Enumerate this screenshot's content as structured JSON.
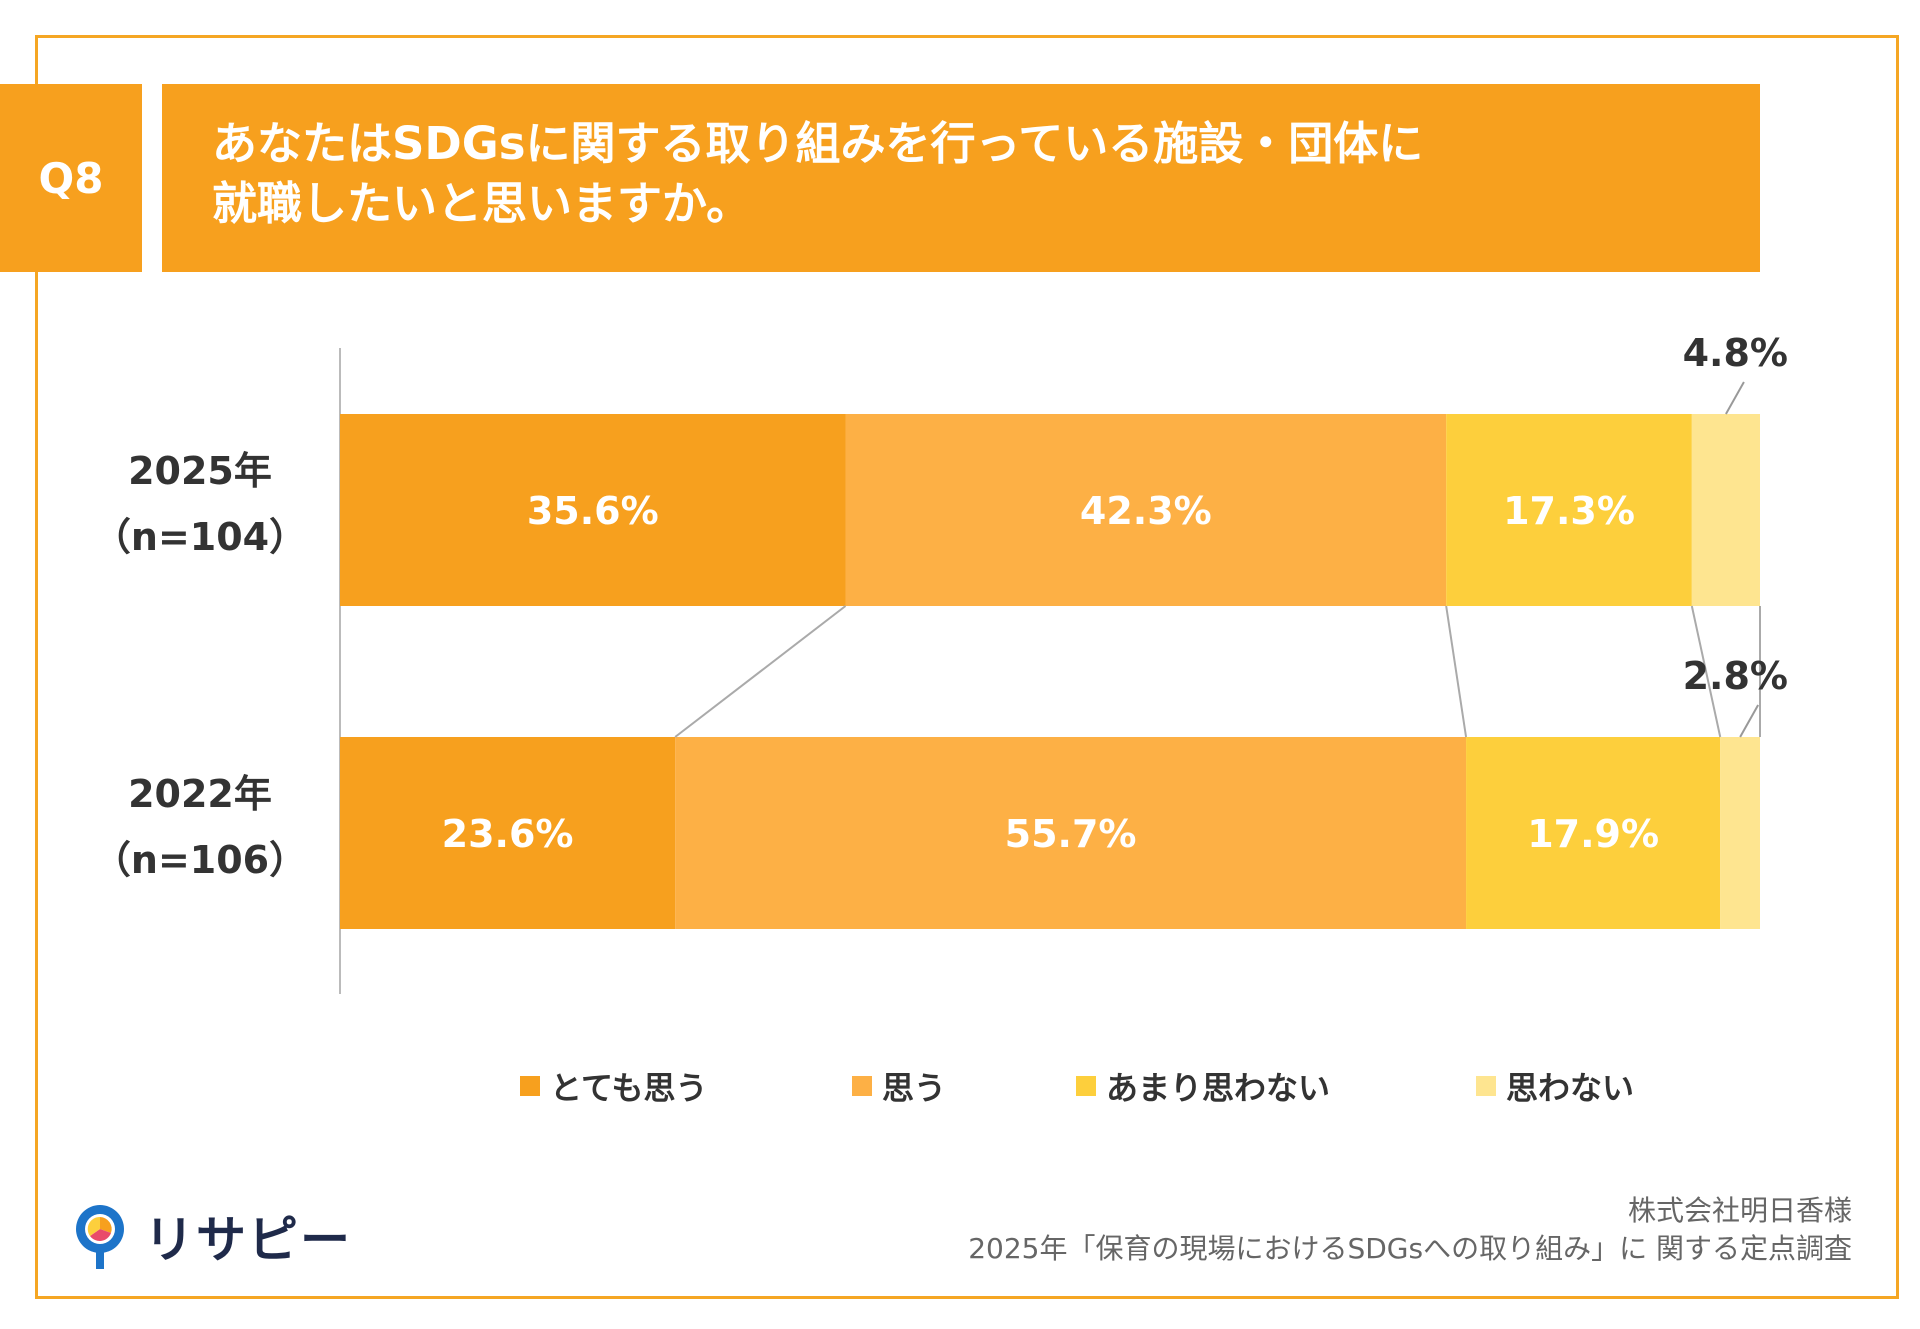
{
  "header": {
    "q_label": "Q8",
    "title_line1": "あなたはSDGsに関する取り組みを行っている施設・団体に",
    "title_line2": "就職したいと思いますか。"
  },
  "chart_data": {
    "type": "bar",
    "orientation": "horizontal",
    "stacked": "percent",
    "categories": [
      {
        "year": "2025年",
        "n": "（n=104）"
      },
      {
        "year": "2022年",
        "n": "（n=106）"
      }
    ],
    "series": [
      {
        "name": "とても思う",
        "color": "#F7A01E",
        "values": [
          35.6,
          23.6
        ],
        "labels": [
          "35.6%",
          "23.6%"
        ]
      },
      {
        "name": "思う",
        "color": "#FDB045",
        "values": [
          42.3,
          55.7
        ],
        "labels": [
          "42.3%",
          "55.7%"
        ]
      },
      {
        "name": "あまり思わない",
        "color": "#FDCF3C",
        "values": [
          17.3,
          17.9
        ],
        "labels": [
          "17.3%",
          "17.9%"
        ]
      },
      {
        "name": "思わない",
        "color": "#FEE590",
        "values": [
          4.8,
          2.8
        ],
        "labels": [
          "4.8%",
          "2.8%"
        ]
      }
    ],
    "xlim": [
      0,
      100
    ],
    "legend_position": "bottom",
    "connector_lines": true
  },
  "footer": {
    "logo_text": "リサピー",
    "credit_line1": "株式会社明日香様",
    "credit_line2": "2025年「保育の現場におけるSDGsへの取り組み」に 関する定点調査"
  }
}
